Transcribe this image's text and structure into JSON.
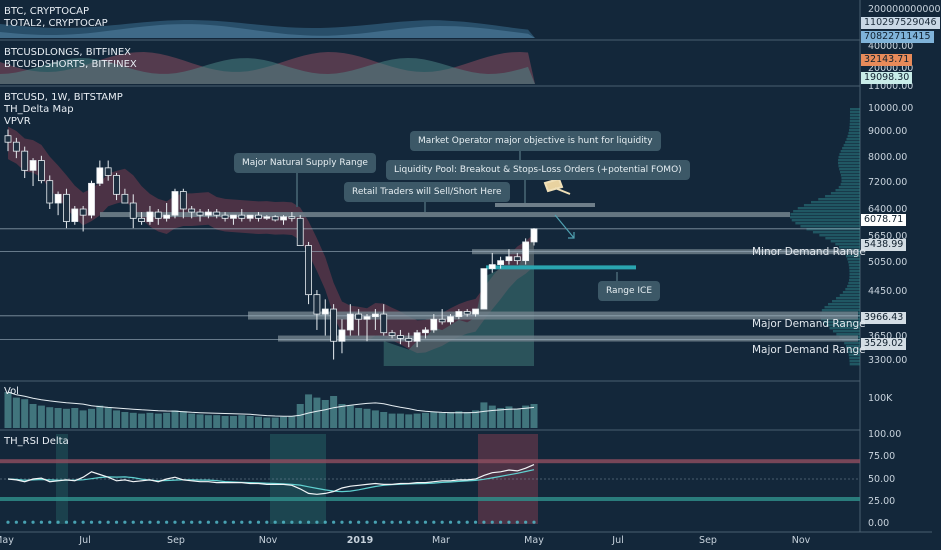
{
  "panes": {
    "top1": {
      "labels": [
        "BTC, CRYPTOCAP",
        "TOTAL2, CRYPTOCAP"
      ]
    },
    "top2": {
      "labels": [
        "BTCUSDLONGS, BITFINEX",
        "BTCUSDSHORTS, BITFINEX"
      ]
    },
    "main": {
      "labels": [
        "BTCUSD, 1W, BITSTAMP",
        "TH_Delta Map",
        "VPVR"
      ]
    },
    "vol": {
      "labels": [
        "Vol"
      ]
    },
    "rsi": {
      "labels": [
        "TH_RSI Delta"
      ]
    }
  },
  "right_axis": {
    "top1_ticks": [
      "200000000000"
    ],
    "top2_ticks": [
      "40000.00",
      "20000.00",
      "11000.00"
    ],
    "main_ticks": [
      "10000.00",
      "9000.00",
      "8000.00",
      "7200.00",
      "6400.00",
      "5650.00",
      "5050.00",
      "4450.00",
      "3650.00",
      "3300.00"
    ],
    "vol_ticks": [
      "100K"
    ],
    "rsi_ticks": [
      "100.00",
      "75.00",
      "50.00",
      "25.00",
      "0.00"
    ]
  },
  "price_tags": [
    {
      "text": "110297529046",
      "bg": "#c9d8e6",
      "fg": "#1b2b3a"
    },
    {
      "text": "70822711415",
      "bg": "#7fb3d9",
      "fg": "#10202e"
    },
    {
      "text": "32143.71",
      "bg": "#e88b5a",
      "fg": "#10202e"
    },
    {
      "text": "19098.30",
      "bg": "#c8ece8",
      "fg": "#10202e"
    },
    {
      "text": "6078.71",
      "bg": "#ffffff",
      "fg": "#10202e"
    },
    {
      "text": "5438.99",
      "bg": "#d3dde4",
      "fg": "#10202e"
    },
    {
      "text": "3966.43",
      "bg": "#d3dde4",
      "fg": "#10202e"
    },
    {
      "text": "3529.02",
      "bg": "#d3dde4",
      "fg": "#10202e"
    }
  ],
  "x_axis": [
    "May",
    "Jul",
    "Sep",
    "Nov",
    "2019",
    "Mar",
    "May",
    "Jul",
    "Sep",
    "Nov"
  ],
  "annotations": {
    "market_operator": "Market Operator major objective is hunt for liquidity",
    "natural_supply": "Major Natural Supply Range",
    "liquidity_pool": "Liquidity Pool: Breakout & Stops-Loss Orders (+potential FOMO)",
    "retail_traders": "Retail Traders will Sell/Short Here",
    "range_ice": "Range ICE",
    "minor_demand": "Minor Demand Range",
    "major_demand_1": "Major Demand Range",
    "major_demand_2": "Major Demand Range"
  },
  "colors": {
    "background": "#13273a",
    "candle_up": "#ffffff",
    "candle_down": "#1d2f40",
    "zone": "#6f7f8a",
    "ice": "#2aa5b0",
    "delta_bull": "#4a8a86",
    "delta_bear": "#7a3c4e"
  },
  "chart_data": {
    "type": "candlestick",
    "title": "BTCUSD, 1W, BITSTAMP",
    "ylabel": "",
    "xlabel": "",
    "ylim": [
      3100,
      11000
    ],
    "candles": [
      [
        9600,
        9900,
        8900,
        9300
      ],
      [
        9300,
        9500,
        8600,
        8900
      ],
      [
        8900,
        9100,
        7800,
        8100
      ],
      [
        8100,
        8600,
        7500,
        8500
      ],
      [
        8500,
        8700,
        7600,
        7700
      ],
      [
        7700,
        7900,
        6700,
        6900
      ],
      [
        6900,
        7300,
        6500,
        7200
      ],
      [
        7200,
        7400,
        6100,
        6300
      ],
      [
        6300,
        6800,
        6200,
        6700
      ],
      [
        6700,
        6800,
        6000,
        6500
      ],
      [
        6500,
        7700,
        6400,
        7600
      ],
      [
        7600,
        8500,
        7500,
        8200
      ],
      [
        8200,
        8500,
        7700,
        7900
      ],
      [
        7900,
        8000,
        7000,
        7200
      ],
      [
        7200,
        7400,
        6900,
        6900
      ],
      [
        6900,
        7200,
        6100,
        6400
      ],
      [
        6400,
        6600,
        6200,
        6300
      ],
      [
        6300,
        6800,
        6200,
        6600
      ],
      [
        6600,
        6700,
        6200,
        6400
      ],
      [
        6400,
        6900,
        6300,
        6500
      ],
      [
        6500,
        7400,
        6400,
        7300
      ],
      [
        7300,
        7400,
        6400,
        6700
      ],
      [
        6700,
        6800,
        6400,
        6600
      ],
      [
        6600,
        6700,
        6300,
        6500
      ],
      [
        6500,
        6700,
        6400,
        6600
      ],
      [
        6600,
        6700,
        6400,
        6500
      ],
      [
        6500,
        6600,
        6300,
        6400
      ],
      [
        6400,
        6500,
        6200,
        6500
      ],
      [
        6500,
        6700,
        6300,
        6400
      ],
      [
        6400,
        6500,
        6300,
        6500
      ],
      [
        6500,
        6600,
        6300,
        6400
      ],
      [
        6400,
        6500,
        6350,
        6450
      ],
      [
        6450,
        6500,
        6300,
        6350
      ],
      [
        6350,
        6500,
        6200,
        6450
      ],
      [
        6450,
        6600,
        6300,
        6400
      ],
      [
        6400,
        6500,
        5600,
        5600
      ],
      [
        5600,
        5700,
        4200,
        4400
      ],
      [
        4400,
        4500,
        3700,
        4000
      ],
      [
        4000,
        4300,
        3600,
        4100
      ],
      [
        4100,
        4200,
        3200,
        3500
      ],
      [
        3500,
        3900,
        3300,
        3700
      ],
      [
        3700,
        4200,
        3600,
        4000
      ],
      [
        4000,
        4100,
        3600,
        3900
      ],
      [
        3900,
        4000,
        3500,
        3950
      ],
      [
        3950,
        4100,
        3700,
        4000
      ],
      [
        4000,
        4200,
        3600,
        3650
      ],
      [
        3650,
        3700,
        3550,
        3600
      ],
      [
        3600,
        3700,
        3450,
        3550
      ],
      [
        3550,
        3650,
        3400,
        3500
      ],
      [
        3500,
        3700,
        3400,
        3650
      ],
      [
        3650,
        3750,
        3550,
        3700
      ],
      [
        3700,
        4000,
        3650,
        3900
      ],
      [
        3900,
        4100,
        3800,
        3850
      ],
      [
        3850,
        4000,
        3800,
        3950
      ],
      [
        3950,
        4100,
        3900,
        4050
      ],
      [
        4050,
        4100,
        3950,
        4000
      ],
      [
        4000,
        4100,
        3950,
        4100
      ],
      [
        4100,
        5000,
        4100,
        5000
      ],
      [
        5000,
        5400,
        4900,
        5100
      ],
      [
        5100,
        5300,
        5000,
        5200
      ],
      [
        5200,
        5500,
        5100,
        5300
      ],
      [
        5300,
        5400,
        5100,
        5200
      ],
      [
        5200,
        5800,
        5100,
        5700
      ],
      [
        5700,
        6100,
        5600,
        6078
      ]
    ],
    "volume": [
      45,
      38,
      36,
      30,
      28,
      26,
      25,
      24,
      25,
      22,
      24,
      28,
      26,
      22,
      20,
      19,
      18,
      19,
      18,
      19,
      22,
      21,
      18,
      17,
      16,
      16,
      15,
      15,
      16,
      15,
      14,
      13,
      13,
      14,
      15,
      30,
      42,
      38,
      35,
      40,
      30,
      28,
      25,
      24,
      22,
      20,
      18,
      18,
      17,
      18,
      19,
      20,
      19,
      20,
      21,
      20,
      22,
      32,
      28,
      25,
      27,
      24,
      28,
      30
    ],
    "rsi_delta": [
      50,
      49,
      47,
      50,
      51,
      47,
      48,
      49,
      48,
      52,
      58,
      55,
      52,
      48,
      49,
      47,
      48,
      49,
      47,
      50,
      52,
      49,
      48,
      47,
      47,
      46,
      46,
      46,
      46,
      45,
      45,
      44,
      44,
      44,
      43,
      39,
      34,
      33,
      34,
      36,
      40,
      42,
      43,
      44,
      45,
      44,
      44,
      45,
      45,
      46,
      46,
      47,
      48,
      48,
      49,
      49,
      50,
      54,
      57,
      58,
      60,
      59,
      62,
      66
    ],
    "levels": {
      "minor_demand": 5438.99,
      "major_demand_1": 3966.43,
      "major_demand_2": 3529.02,
      "current": 6078.71
    }
  }
}
